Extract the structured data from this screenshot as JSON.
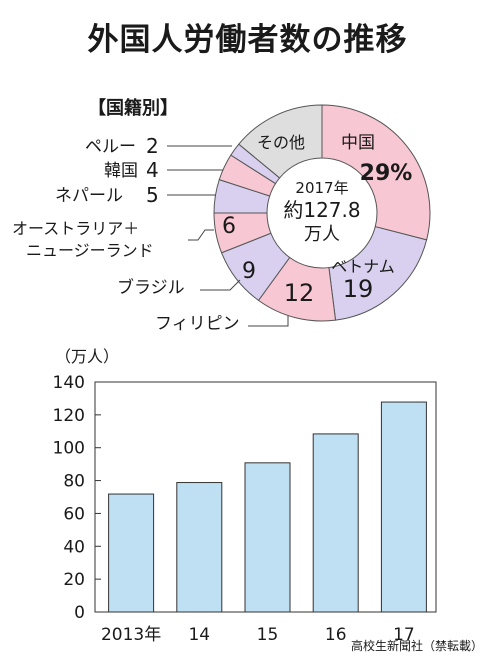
{
  "title": "外国人労働者数の推移",
  "credit": "高校生新聞社（禁転載）",
  "chart_data": [
    {
      "type": "pie",
      "variant": "donut",
      "heading": "【国籍別】",
      "center_text": [
        "2017年",
        "約127.8",
        "万人"
      ],
      "slices": [
        {
          "label": "中国",
          "value": 29,
          "value_label": "29%",
          "color": "#f7c8d4"
        },
        {
          "label": "ベトナム",
          "value": 19,
          "value_label": "19",
          "color": "#d8d0ee"
        },
        {
          "label": "フィリピン",
          "value": 12,
          "value_label": "12",
          "color": "#f7c8d4"
        },
        {
          "label": "ブラジル",
          "value": 9,
          "value_label": "9",
          "color": "#d8d0ee"
        },
        {
          "label": "オーストラリア＋ニュージーランド",
          "label_lines": [
            "オーストラリア＋",
            "ニュージーランド"
          ],
          "value": 6,
          "value_label": "6",
          "color": "#f7c8d4"
        },
        {
          "label": "ネパール",
          "value": 5,
          "value_label": "5",
          "color": "#d8d0ee"
        },
        {
          "label": "韓国",
          "value": 4,
          "value_label": "4",
          "color": "#f7c8d4"
        },
        {
          "label": "ペルー",
          "value": 2,
          "value_label": "2",
          "color": "#d8d0ee"
        },
        {
          "label": "その他",
          "value": 14,
          "value_label": "",
          "color": "#dedede"
        }
      ]
    },
    {
      "type": "bar",
      "ylabel": "（万人）",
      "categories": [
        "2013年",
        "14",
        "15",
        "16",
        "17"
      ],
      "values": [
        71.8,
        78.8,
        90.8,
        108.4,
        127.8
      ],
      "ylim": [
        0,
        140
      ],
      "yticks": [
        0,
        20,
        40,
        60,
        80,
        100,
        120,
        140
      ],
      "bar_color": "#bfe0f2",
      "grid": false
    }
  ]
}
